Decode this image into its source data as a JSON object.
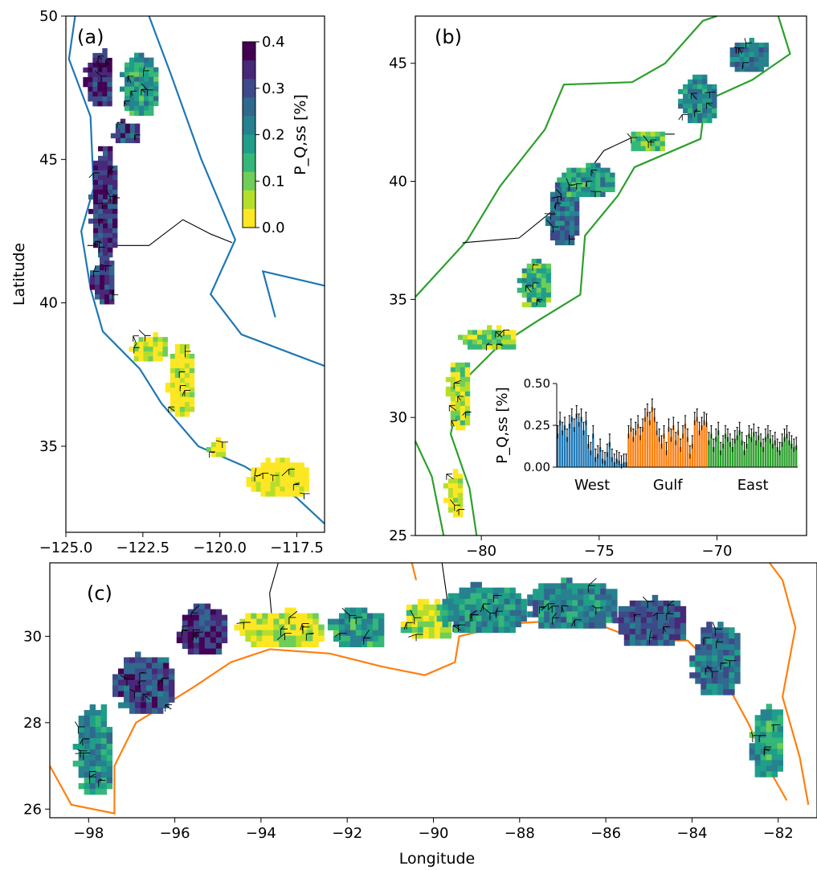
{
  "colors": {
    "west": "#1f77b4",
    "gulf": "#ff7f0e",
    "east": "#2ca02c",
    "viridis": [
      "#fde725",
      "#b5de2b",
      "#6ece58",
      "#35b779",
      "#1f9e89",
      "#26828e",
      "#31688e",
      "#3e4989",
      "#482878",
      "#440154"
    ]
  },
  "chart_data": [
    {
      "panel": "a",
      "type": "heatmap",
      "panel_label": "(a)",
      "ylabel": "Latitude",
      "xlim": [
        -125.0,
        -116.6
      ],
      "ylim": [
        32.0,
        50.0
      ],
      "xticks": [
        "−125.0",
        "−122.5",
        "−120.0",
        "−117.5"
      ],
      "yticks": [
        "50",
        "45",
        "40",
        "35"
      ],
      "colorbar": {
        "label": "P_Q,ss [%]",
        "range": [
          0.0,
          0.4
        ],
        "ticks": [
          "0.4",
          "0.3",
          "0.2",
          "0.1",
          "0.0"
        ]
      }
    },
    {
      "panel": "b",
      "type": "heatmap",
      "panel_label": "(b)",
      "xlim": [
        -82.8,
        -66.2
      ],
      "ylim": [
        25.0,
        47.0
      ],
      "xticks": [
        "−80",
        "−75",
        "−70"
      ],
      "yticks": [
        "45",
        "40",
        "35",
        "30",
        "25"
      ],
      "inset": {
        "type": "bar",
        "ylabel": "P_Q,ss [%]",
        "ylim": [
          0.0,
          0.5
        ],
        "yticks": [
          "0.50",
          "0.25",
          "0.00"
        ],
        "groups": [
          "West",
          "Gulf",
          "East"
        ],
        "series": [
          {
            "name": "West",
            "values": [
              0.2,
              0.28,
              0.22,
              0.25,
              0.18,
              0.26,
              0.3,
              0.24,
              0.32,
              0.27,
              0.3,
              0.22,
              0.28,
              0.14,
              0.1,
              0.2,
              0.06,
              0.08,
              0.12,
              0.05,
              0.04,
              0.09,
              0.15,
              0.06,
              0.03,
              0.05,
              0.04,
              0.02,
              0.03,
              0.03
            ]
          },
          {
            "name": "Gulf",
            "values": [
              0.2,
              0.24,
              0.18,
              0.22,
              0.26,
              0.19,
              0.24,
              0.3,
              0.33,
              0.28,
              0.36,
              0.3,
              0.22,
              0.18,
              0.14,
              0.2,
              0.1,
              0.24,
              0.18,
              0.25,
              0.16,
              0.22,
              0.12,
              0.2,
              0.26,
              0.18,
              0.08,
              0.14,
              0.28,
              0.3,
              0.22,
              0.25,
              0.28,
              0.27
            ]
          },
          {
            "name": "East",
            "values": [
              0.16,
              0.2,
              0.12,
              0.18,
              0.22,
              0.1,
              0.14,
              0.2,
              0.18,
              0.15,
              0.12,
              0.17,
              0.19,
              0.22,
              0.16,
              0.1,
              0.14,
              0.2,
              0.18,
              0.21,
              0.16,
              0.19,
              0.15,
              0.12,
              0.18,
              0.2,
              0.17,
              0.14,
              0.16,
              0.12,
              0.1,
              0.15,
              0.18,
              0.2,
              0.16,
              0.14,
              0.12,
              0.13
            ]
          }
        ]
      }
    },
    {
      "panel": "c",
      "type": "heatmap",
      "panel_label": "(c)",
      "xlabel": "Longitude",
      "xlim": [
        -98.9,
        -81.1
      ],
      "ylim": [
        25.8,
        31.7
      ],
      "xticks": [
        "−98",
        "−96",
        "−94",
        "−92",
        "−90",
        "−88",
        "−86",
        "−84",
        "−82"
      ],
      "yticks": [
        "30",
        "28",
        "26"
      ]
    }
  ]
}
